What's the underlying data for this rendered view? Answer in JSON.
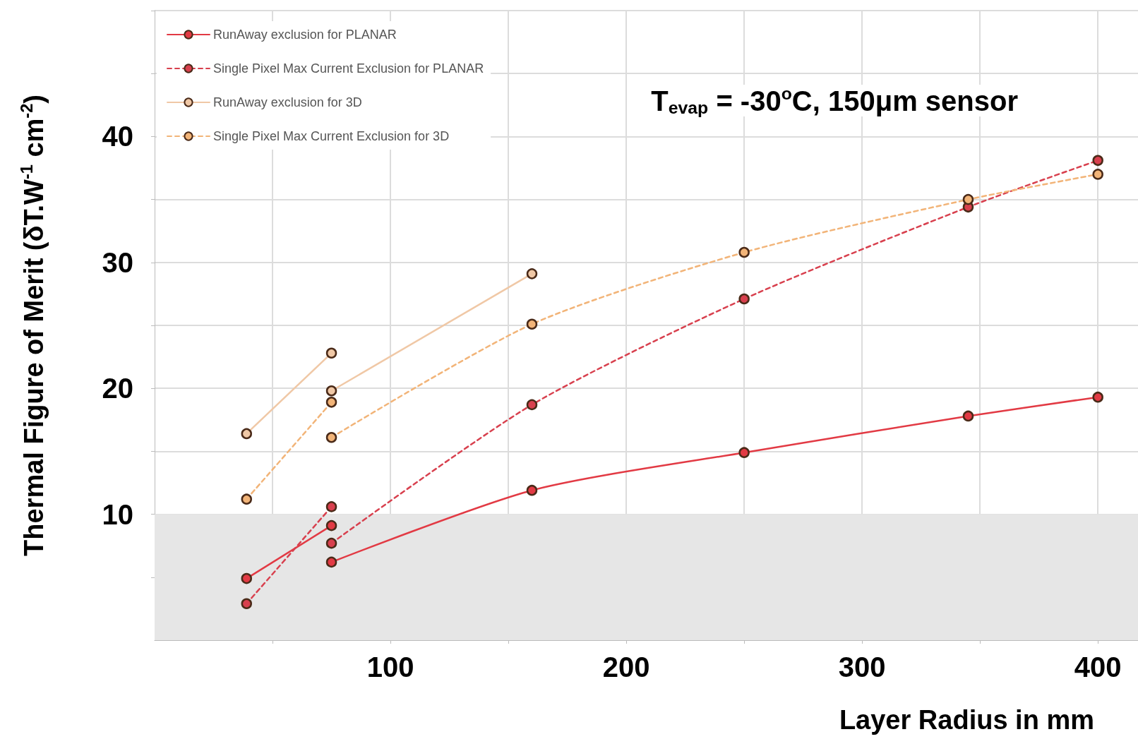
{
  "chart_data": {
    "type": "line",
    "xlabel": "Layer Radius in mm",
    "ylabel": "Thermal Figure of Merit (δT.W$^{-1}$ cm$^{-2}$)",
    "annotations": [
      "T$_{evap}$ = -30$^{o}$C, 150μm sensor"
    ],
    "series": [
      {
        "name": "RunAway exclusion for PLANAR",
        "color": "#e23a44",
        "line_style": "solid",
        "x": [
          75,
          160,
          250,
          345,
          400
        ],
        "values": [
          6.2,
          11.9,
          14.9,
          17.8,
          19.3
        ]
      },
      {
        "name": "Single Pixel Max Current Exclusion for PLANAR",
        "color": "#d8404e",
        "line_style": "dashed",
        "x": [
          75,
          160,
          250,
          345,
          400
        ],
        "values": [
          7.7,
          18.7,
          27.1,
          34.4,
          38.1
        ]
      },
      {
        "name": "RunAway exclusion for 3D",
        "color": "#f0c8a6",
        "line_style": "solid",
        "x": [
          75,
          160
        ],
        "values": [
          19.8,
          29.1
        ]
      },
      {
        "name": "Single Pixel Max Current Exclusion for 3D",
        "color": "#f2b478",
        "line_style": "dashed",
        "x": [
          75,
          160,
          250,
          345,
          400
        ],
        "values": [
          16.1,
          25.1,
          30.8,
          35.0,
          37.0
        ]
      },
      {
        "color": "#e23a44",
        "line_style": "solid",
        "x": [
          39,
          75
        ],
        "values": [
          4.9,
          9.1
        ]
      },
      {
        "color": "#d8404e",
        "line_style": "dashed",
        "x": [
          39,
          75
        ],
        "values": [
          2.9,
          10.6
        ]
      },
      {
        "color": "#f0c8a6",
        "line_style": "solid",
        "x": [
          39,
          75
        ],
        "values": [
          16.4,
          22.8
        ]
      },
      {
        "color": "#f2b478",
        "line_style": "dashed",
        "x": [
          39,
          75
        ],
        "values": [
          11.2,
          18.9
        ]
      }
    ],
    "xlim": [
      0,
      417
    ],
    "xticks": [
      {
        "value": 50,
        "label": null
      },
      100,
      {
        "value": 150,
        "label": null
      },
      200,
      {
        "value": 250,
        "label": null
      },
      300,
      {
        "value": 350,
        "label": null
      },
      400
    ],
    "ylim": [
      0,
      50
    ],
    "yticks": [
      {
        "value": 5,
        "label": null
      },
      10,
      {
        "value": 15,
        "label": null
      },
      20,
      {
        "value": 25,
        "label": null
      },
      30,
      {
        "value": 35,
        "label": null
      },
      40,
      {
        "value": 45,
        "label": null
      },
      {
        "value": 50,
        "label": null
      }
    ],
    "bands": [
      {
        "axis": "y",
        "from": 0,
        "to": 10,
        "color": "#e6e6e6"
      }
    ],
    "grid": true,
    "legend": "top left",
    "marker": "circle"
  }
}
